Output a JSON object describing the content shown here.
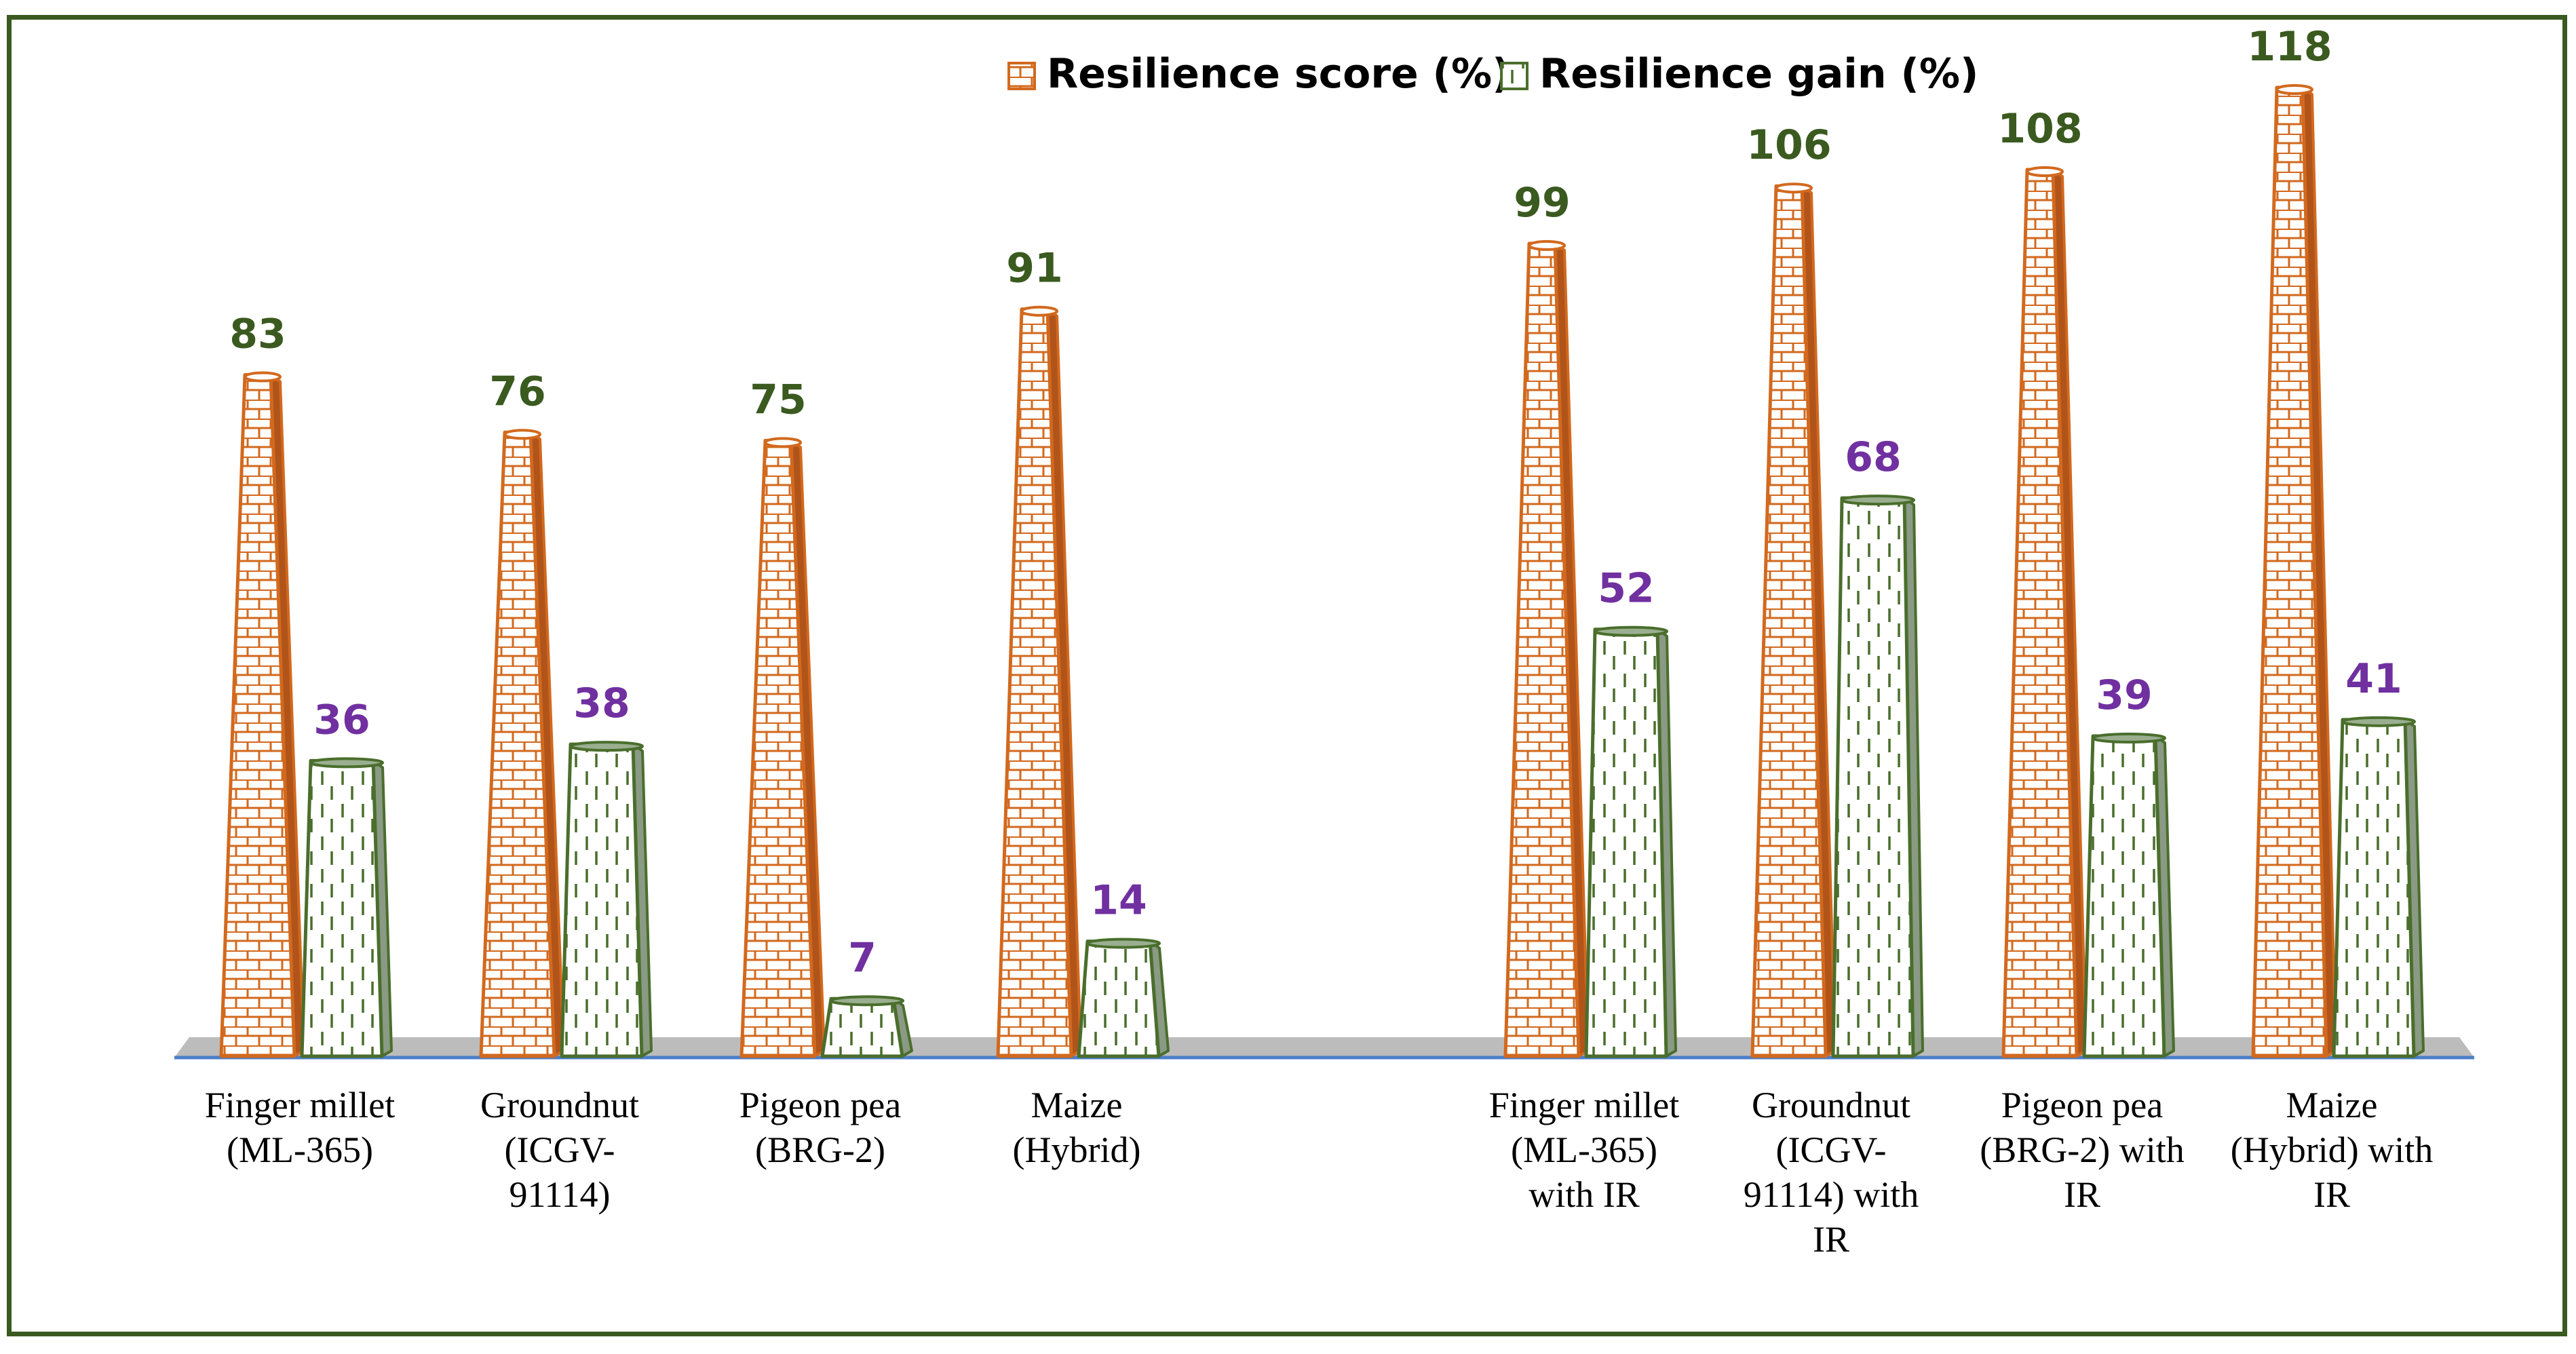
{
  "chart_data": {
    "type": "bar",
    "categories": [
      [
        "Finger millet",
        "(ML-365)"
      ],
      [
        "Groundnut",
        "(ICGV-",
        "91114)"
      ],
      [
        "Pigeon pea",
        "(BRG-2)"
      ],
      [
        "Maize",
        "(Hybrid)"
      ],
      [
        "Finger millet",
        "(ML-365)",
        "with IR"
      ],
      [
        "Groundnut",
        "(ICGV-",
        "91114) with",
        "IR"
      ],
      [
        "Pigeon pea",
        "(BRG-2) with",
        "IR"
      ],
      [
        "Maize",
        "(Hybrid) with",
        "IR"
      ]
    ],
    "series": [
      {
        "name": "Resilience score (%)",
        "values": [
          83,
          76,
          75,
          91,
          99,
          106,
          108,
          118
        ],
        "color": "#d2691e",
        "label_color": "#3a5a1f"
      },
      {
        "name": "Resilience gain (%)",
        "values": [
          36,
          38,
          7,
          14,
          52,
          68,
          39,
          41
        ],
        "color": "#4a6e2c",
        "label_color": "#7030a0"
      }
    ],
    "ylim": [
      0,
      118
    ],
    "title": "",
    "xlabel": "",
    "ylabel": "",
    "legend_position": "top-right"
  }
}
